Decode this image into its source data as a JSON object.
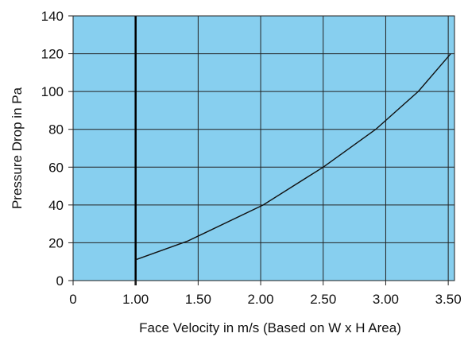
{
  "chart_data": {
    "type": "line",
    "title": "",
    "xlabel": "Face Velocity in m/s  (Based on W x H Area)",
    "ylabel": "Pressure Drop in Pa",
    "xlim": [
      0.5,
      3.55
    ],
    "ylim": [
      0,
      140
    ],
    "x_ticks": [
      {
        "value": 0.5,
        "label": "0"
      },
      {
        "value": 1.0,
        "label": "1.00"
      },
      {
        "value": 1.5,
        "label": "1.50"
      },
      {
        "value": 2.0,
        "label": "2.00"
      },
      {
        "value": 2.5,
        "label": "2.50"
      },
      {
        "value": 3.0,
        "label": "3.00"
      },
      {
        "value": 3.5,
        "label": "3.50"
      }
    ],
    "y_ticks": [
      0,
      20,
      40,
      60,
      80,
      100,
      120,
      140
    ],
    "grid": true,
    "background_color": "#87cfef",
    "grid_color": "#222222",
    "line_color": "#111111",
    "emphasized_vline_x": 1.0,
    "series": [
      {
        "x": [
          1.0,
          1.42,
          2.02,
          2.5,
          2.92,
          3.26,
          3.52
        ],
        "y": [
          11,
          21,
          40,
          60,
          80,
          100,
          120
        ]
      }
    ]
  }
}
